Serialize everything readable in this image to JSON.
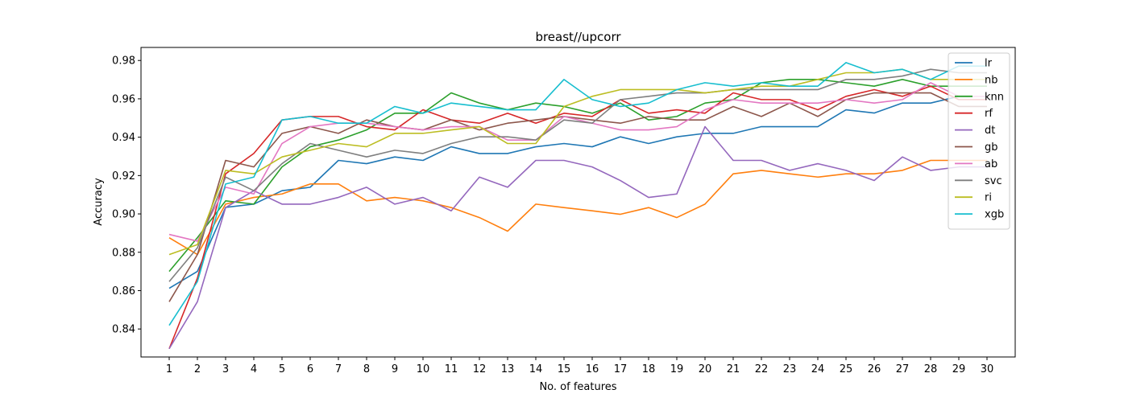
{
  "chart_data": {
    "type": "line",
    "title": "breast//upcorr",
    "xlabel": "No. of features",
    "ylabel": "Accuracy",
    "x": [
      1,
      2,
      3,
      4,
      5,
      6,
      7,
      8,
      9,
      10,
      11,
      12,
      13,
      14,
      15,
      16,
      17,
      18,
      19,
      20,
      21,
      22,
      23,
      24,
      25,
      26,
      27,
      28,
      29,
      30
    ],
    "xlim": [
      0.0,
      31.0
    ],
    "ylim": [
      0.8254,
      0.9868
    ],
    "yticks": [
      0.84,
      0.86,
      0.88,
      0.9,
      0.92,
      0.94,
      0.96,
      0.98
    ],
    "ytick_labels": [
      "0.84",
      "0.86",
      "0.88",
      "0.90",
      "0.92",
      "0.94",
      "0.96",
      "0.98"
    ],
    "grid": false,
    "legend_position": "top-right",
    "series": [
      {
        "name": "lr",
        "color": "#1f77b4",
        "values": [
          0.8612,
          0.87,
          0.9034,
          0.9051,
          0.9121,
          0.9139,
          0.9279,
          0.9262,
          0.9297,
          0.9279,
          0.935,
          0.9315,
          0.9315,
          0.935,
          0.9367,
          0.935,
          0.9402,
          0.9367,
          0.9402,
          0.942,
          0.942,
          0.9455,
          0.9455,
          0.9455,
          0.9543,
          0.9526,
          0.9578,
          0.9578,
          0.9613,
          0.9613
        ]
      },
      {
        "name": "nb",
        "color": "#ff7f0e",
        "values": [
          0.8876,
          0.8788,
          0.9051,
          0.9086,
          0.9104,
          0.9156,
          0.9156,
          0.9068,
          0.9086,
          0.9068,
          0.9033,
          0.8981,
          0.891,
          0.9051,
          0.9033,
          0.9016,
          0.8998,
          0.9033,
          0.8981,
          0.9051,
          0.9209,
          0.9227,
          0.9209,
          0.9192,
          0.9209,
          0.9209,
          0.9227,
          0.9279,
          0.9279,
          0.9279
        ]
      },
      {
        "name": "knn",
        "color": "#2ca02c",
        "values": [
          0.87,
          0.8876,
          0.9068,
          0.9051,
          0.9245,
          0.935,
          0.9385,
          0.9438,
          0.9525,
          0.9525,
          0.9631,
          0.9578,
          0.9543,
          0.9578,
          0.956,
          0.9525,
          0.9578,
          0.949,
          0.9508,
          0.9578,
          0.9596,
          0.9684,
          0.9701,
          0.9701,
          0.9684,
          0.9666,
          0.9701,
          0.9666,
          0.9666,
          0.9666
        ]
      },
      {
        "name": "rf",
        "color": "#d62728",
        "values": [
          0.8297,
          0.8665,
          0.9209,
          0.9315,
          0.949,
          0.9508,
          0.9508,
          0.9455,
          0.9438,
          0.9543,
          0.949,
          0.9473,
          0.9525,
          0.9473,
          0.9525,
          0.9508,
          0.9596,
          0.9525,
          0.9543,
          0.9525,
          0.9631,
          0.9596,
          0.9596,
          0.9543,
          0.9613,
          0.9648,
          0.9613,
          0.9666,
          0.9596,
          0.9596
        ]
      },
      {
        "name": "dt",
        "color": "#9467bd",
        "values": [
          0.8297,
          0.8542,
          0.9033,
          0.9121,
          0.9051,
          0.9051,
          0.9086,
          0.9139,
          0.9051,
          0.9086,
          0.9016,
          0.9192,
          0.9139,
          0.9279,
          0.9279,
          0.9245,
          0.9174,
          0.9086,
          0.9104,
          0.9455,
          0.9279,
          0.9279,
          0.9227,
          0.9262,
          0.9227,
          0.9174,
          0.9297,
          0.9227,
          0.9245,
          0.9245
        ]
      },
      {
        "name": "gb",
        "color": "#8c564b",
        "values": [
          0.8542,
          0.8788,
          0.9279,
          0.9245,
          0.942,
          0.9455,
          0.942,
          0.949,
          0.9455,
          0.9438,
          0.949,
          0.9438,
          0.9473,
          0.949,
          0.9508,
          0.949,
          0.9473,
          0.9508,
          0.949,
          0.949,
          0.956,
          0.9508,
          0.9578,
          0.9508,
          0.9596,
          0.9631,
          0.9631,
          0.9631,
          0.956,
          0.956
        ]
      },
      {
        "name": "ab",
        "color": "#e377c2",
        "values": [
          0.8893,
          0.8858,
          0.9139,
          0.9104,
          0.9367,
          0.9455,
          0.9473,
          0.9473,
          0.9455,
          0.9438,
          0.9455,
          0.9455,
          0.9385,
          0.9385,
          0.9508,
          0.9473,
          0.9438,
          0.9438,
          0.9455,
          0.9543,
          0.9596,
          0.9578,
          0.9578,
          0.9578,
          0.9596,
          0.9578,
          0.9596,
          0.9684,
          0.9613,
          0.9613
        ]
      },
      {
        "name": "svc",
        "color": "#7f7f7f",
        "values": [
          0.8647,
          0.8823,
          0.9192,
          0.9121,
          0.9262,
          0.9367,
          0.9332,
          0.9297,
          0.9332,
          0.9315,
          0.9367,
          0.9402,
          0.9402,
          0.9385,
          0.949,
          0.9473,
          0.9596,
          0.9613,
          0.9631,
          0.9631,
          0.9648,
          0.9648,
          0.9648,
          0.9648,
          0.9701,
          0.9701,
          0.9719,
          0.9754,
          0.9736,
          0.9736
        ]
      },
      {
        "name": "ri",
        "color": "#bcbd22",
        "values": [
          0.8788,
          0.884,
          0.9227,
          0.9209,
          0.9297,
          0.9332,
          0.9367,
          0.935,
          0.942,
          0.942,
          0.9438,
          0.9455,
          0.9367,
          0.9367,
          0.956,
          0.9613,
          0.9648,
          0.9648,
          0.9648,
          0.9631,
          0.9648,
          0.9666,
          0.9666,
          0.9701,
          0.9736,
          0.9736,
          0.9754,
          0.9701,
          0.9701,
          0.9701
        ]
      },
      {
        "name": "xgb",
        "color": "#17becf",
        "values": [
          0.8419,
          0.8647,
          0.9156,
          0.9192,
          0.949,
          0.9508,
          0.9473,
          0.9473,
          0.956,
          0.9525,
          0.9578,
          0.956,
          0.9543,
          0.9543,
          0.9701,
          0.9596,
          0.956,
          0.9578,
          0.9648,
          0.9684,
          0.9666,
          0.9684,
          0.9666,
          0.9666,
          0.9789,
          0.9736,
          0.9754,
          0.9701,
          0.9771,
          0.9771
        ]
      }
    ]
  }
}
